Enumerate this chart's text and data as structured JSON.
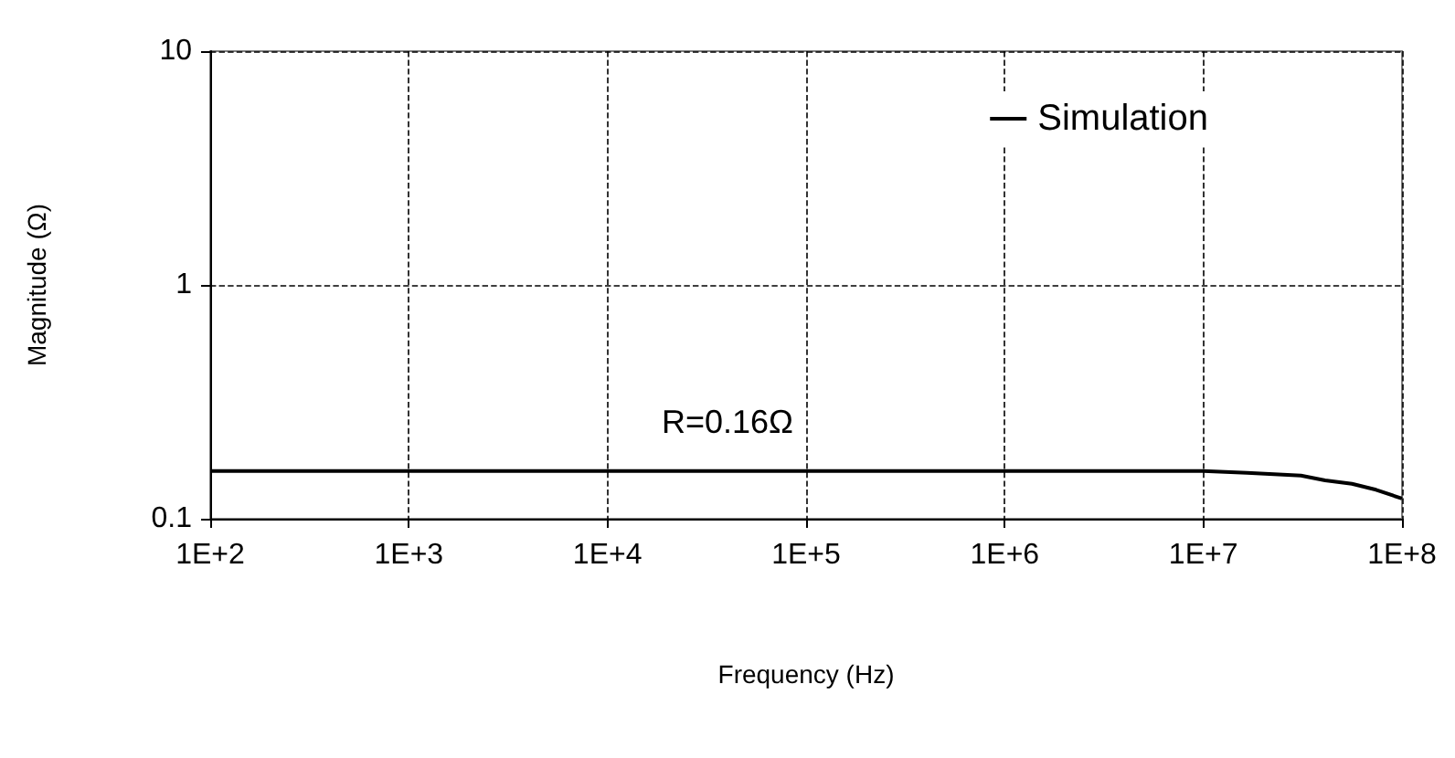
{
  "chart_data": {
    "type": "line",
    "xlabel": "Frequency (Hz)",
    "ylabel": "Magnitude (Ω)",
    "log": "xy",
    "grid": true,
    "legend": "top right",
    "marker": "none",
    "line_style": "solid",
    "xlim": [
      100,
      100000000
    ],
    "ylim": [
      0.1,
      10
    ],
    "xticks": [
      {
        "value": 100,
        "label": "1E+2"
      },
      {
        "value": 1000,
        "label": "1E+3"
      },
      {
        "value": 10000,
        "label": "1E+4"
      },
      {
        "value": 100000,
        "label": "1E+5"
      },
      {
        "value": 1000000,
        "label": "1E+6"
      },
      {
        "value": 10000000,
        "label": "1E+7"
      },
      {
        "value": 100000000,
        "label": "1E+8"
      }
    ],
    "yticks": [
      0.1,
      1,
      10
    ],
    "annotations": [
      "R=0.16Ω"
    ],
    "series": [
      {
        "name": "Simulation",
        "color": "#000000",
        "x": [
          100,
          10000000,
          16600000,
          31000000,
          41000000,
          56000000,
          74000000,
          100000000
        ],
        "values": [
          0.16,
          0.16,
          0.157,
          0.153,
          0.146,
          0.141,
          0.133,
          0.122
        ]
      }
    ]
  }
}
